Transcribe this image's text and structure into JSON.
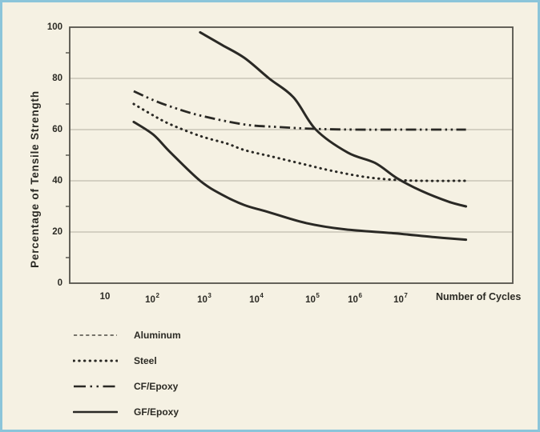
{
  "colors": {
    "page_background": "#f5f1e3",
    "page_border": "#8bc5da",
    "axis_line": "#54524a",
    "gridline": "#b2afa2",
    "curve": "#2a2925",
    "text": "#2b2a24",
    "aluminum_legend_line": "#4d4b42"
  },
  "chart_data": {
    "type": "line",
    "title": "",
    "xlabel": "Number of Cycles",
    "ylabel": "Percentage of Tensile Strength",
    "x_scale": "log10",
    "x_unit": "log10(cycles)",
    "xlim_log": [
      0.3,
      9.3
    ],
    "ylim": [
      0,
      100
    ],
    "grid": "horizontal-only",
    "legend_position": "below-left",
    "y_major_ticks": [
      0,
      20,
      40,
      60,
      80,
      100
    ],
    "y_minor_ticks": [
      10,
      30,
      50,
      70,
      90
    ],
    "y_gridlines": [
      20,
      40,
      60,
      80
    ],
    "x_ticks": [
      {
        "base": "10",
        "sup": "",
        "log": 1,
        "pos_frac": 0.0796
      },
      {
        "base": "10",
        "sup": "2",
        "log": 2,
        "pos_frac": 0.1863
      },
      {
        "base": "10",
        "sup": "3",
        "log": 3,
        "pos_frac": 0.3038
      },
      {
        "base": "10",
        "sup": "4",
        "log": 4,
        "pos_frac": 0.4213
      },
      {
        "base": "10",
        "sup": "5",
        "log": 5,
        "pos_frac": 0.5479
      },
      {
        "base": "10",
        "sup": "6",
        "log": 6,
        "pos_frac": 0.6438
      },
      {
        "base": "10",
        "sup": "7",
        "log": 7,
        "pos_frac": 0.7468
      }
    ],
    "series": [
      {
        "name": "Aluminum",
        "legend_style": "dashed",
        "plot_style": "solid",
        "points": [
          [
            1.6,
            63
          ],
          [
            2.0,
            58
          ],
          [
            2.35,
            51
          ],
          [
            2.95,
            40
          ],
          [
            3.4,
            34.5
          ],
          [
            3.85,
            30.5
          ],
          [
            4.3,
            28
          ],
          [
            5.1,
            23.5
          ],
          [
            5.9,
            21
          ],
          [
            6.9,
            19.5
          ],
          [
            7.7,
            18
          ],
          [
            8.35,
            17
          ]
        ]
      },
      {
        "name": "Steel",
        "legend_style": "dotted",
        "plot_style": "dotted",
        "points": [
          [
            1.6,
            70
          ],
          [
            2.0,
            65.5
          ],
          [
            2.35,
            62
          ],
          [
            2.95,
            57.5
          ],
          [
            3.5,
            54.5
          ],
          [
            3.85,
            52
          ],
          [
            4.4,
            49.5
          ],
          [
            5.05,
            46.5
          ],
          [
            5.6,
            44
          ],
          [
            6.3,
            41.5
          ],
          [
            6.95,
            40.3
          ],
          [
            7.5,
            40
          ],
          [
            8.35,
            40
          ]
        ]
      },
      {
        "name": "CF/Epoxy",
        "legend_style": "dash-dot-dot",
        "plot_style": "dash-dot-dot",
        "points": [
          [
            1.6,
            75
          ],
          [
            2.0,
            71.5
          ],
          [
            2.35,
            69
          ],
          [
            2.95,
            65.5
          ],
          [
            3.85,
            62
          ],
          [
            4.55,
            61
          ],
          [
            5.25,
            60.3
          ],
          [
            6.1,
            60
          ],
          [
            7.2,
            60
          ],
          [
            8.35,
            60
          ]
        ]
      },
      {
        "name": "GF/Epoxy",
        "legend_style": "solid",
        "plot_style": "solid",
        "points": [
          [
            2.95,
            98
          ],
          [
            3.4,
            93
          ],
          [
            3.85,
            88
          ],
          [
            4.35,
            80
          ],
          [
            4.85,
            72.5
          ],
          [
            5.3,
            60
          ],
          [
            5.95,
            51
          ],
          [
            6.5,
            47
          ],
          [
            6.95,
            41
          ],
          [
            7.45,
            36
          ],
          [
            8.0,
            31.8
          ],
          [
            8.35,
            30
          ]
        ]
      }
    ]
  }
}
